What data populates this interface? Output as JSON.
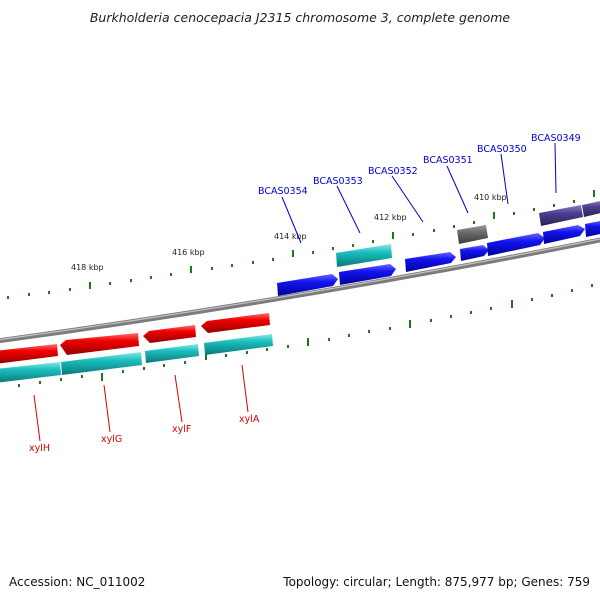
{
  "title": "Burkholderia cenocepacia J2315 chromosome 3, complete genome",
  "accession_label": "Accession: NC_011002",
  "topology_label": "Topology: circular; Length: 875,977 bp; Genes: 759",
  "scale_labels": [
    "418 kbp",
    "416 kbp",
    "414 kbp",
    "412 kbp",
    "410 kbp"
  ],
  "forward_gene_labels": [
    "BCAS0354",
    "BCAS0353",
    "BCAS0352",
    "BCAS0351",
    "BCAS0350",
    "BCAS0349"
  ],
  "reverse_gene_labels": [
    "xylH",
    "xylG",
    "xylF",
    "xylA"
  ],
  "colors": {
    "forward_label": "#0000cc",
    "reverse_label": "#dd0000",
    "backbone": "#8a8a8a",
    "tick": "#1a7a1a",
    "blue_gene": "#0a0ae0",
    "cyan_gene": "#14b4b4",
    "red_gene": "#e00000",
    "gray_gene": "#666666",
    "purple_gene": "#4a3c8c"
  }
}
